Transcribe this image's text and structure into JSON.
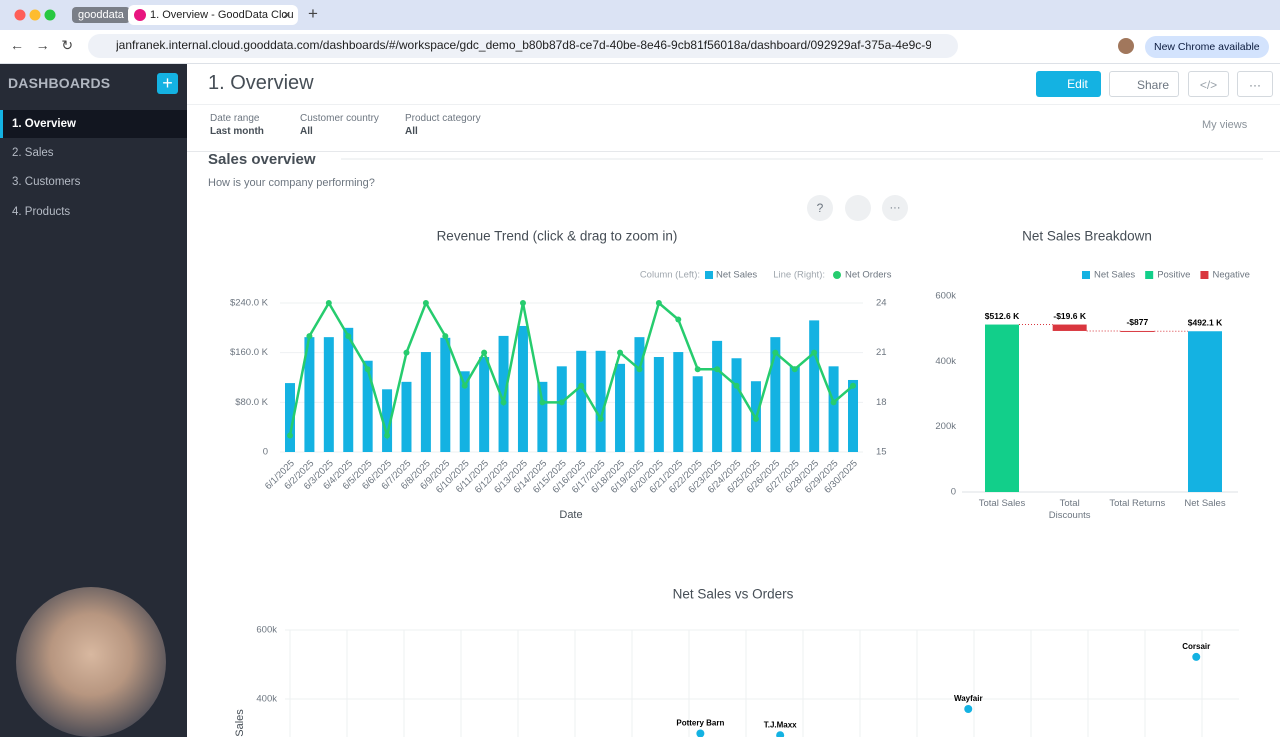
{
  "browser": {
    "tabs": [
      "gooddata",
      "1. Overview - GoodData Clou"
    ],
    "url": "janfranek.internal.cloud.gooddata.com/dashboards/#/workspace/gdc_demo_b80b87d8-ce7d-40be-8e46-9cb81f56018a/dashboard/092929af-375a-4e9c-964f-2a...",
    "update": "New Chrome available"
  },
  "sidebar": {
    "title": "DASHBOARDS",
    "items": [
      "1. Overview",
      "2. Sales",
      "3. Customers",
      "4. Products"
    ]
  },
  "header": {
    "title": "1. Overview",
    "buttons": [
      "Edit",
      "Share"
    ]
  },
  "filters": [
    {
      "label": "Date range",
      "value": "Last month"
    },
    {
      "label": "Customer country",
      "value": "All"
    },
    {
      "label": "Product category",
      "value": "All"
    }
  ],
  "my_views": "My views",
  "section": {
    "title": "Sales overview",
    "subtitle": "How is your company performing?"
  },
  "charts": [
    {
      "type": "combo",
      "title": "Revenue Trend (click & drag to zoom in)",
      "xlabel": "Date",
      "legend_groups": [
        "Column (Left):",
        "Line (Right):"
      ],
      "categories": [
        "6/1/2025",
        "6/2/2025",
        "6/3/2025",
        "6/4/2025",
        "6/5/2025",
        "6/6/2025",
        "6/7/2025",
        "6/8/2025",
        "6/9/2025",
        "6/10/2025",
        "6/11/2025",
        "6/12/2025",
        "6/13/2025",
        "6/14/2025",
        "6/15/2025",
        "6/16/2025",
        "6/17/2025",
        "6/18/2025",
        "6/19/2025",
        "6/20/2025",
        "6/21/2025",
        "6/22/2025",
        "6/23/2025",
        "6/24/2025",
        "6/25/2025",
        "6/26/2025",
        "6/27/2025",
        "6/28/2025",
        "6/29/2025",
        "6/30/2025"
      ],
      "series": [
        {
          "name": "Net Sales",
          "kind": "bar",
          "color": "#14b2e2",
          "values": [
            111000,
            185000,
            185000,
            200000,
            147000,
            101000,
            113000,
            161000,
            184000,
            130000,
            153000,
            187000,
            203000,
            113000,
            138000,
            163000,
            163000,
            142000,
            185000,
            153000,
            161000,
            122000,
            179000,
            151000,
            114000,
            185000,
            138000,
            212000,
            138000,
            116000
          ]
        },
        {
          "name": "Net Orders",
          "kind": "line",
          "axis": "y2",
          "color": "#26cc6e",
          "values": [
            16,
            22,
            24,
            22,
            20,
            16,
            21,
            24,
            22,
            19,
            21,
            18,
            24,
            18,
            18,
            19,
            17,
            21,
            20,
            24,
            23,
            20,
            20,
            19,
            17,
            21,
            20,
            21,
            18,
            19
          ]
        }
      ],
      "ylim": [
        0,
        240000
      ],
      "yticks": [
        0,
        {
          "value": 80000,
          "label": "$80.0 K"
        },
        {
          "value": 160000,
          "label": "$160.0 K"
        },
        {
          "value": 240000,
          "label": "$240.0 K"
        }
      ],
      "y2lim": [
        15,
        24
      ],
      "y2ticks": [
        15,
        18,
        21,
        24
      ],
      "grid": true
    },
    {
      "type": "waterfall",
      "title": "Net Sales Breakdown",
      "legend": [
        {
          "name": "Net Sales",
          "color": "#14b2e2"
        },
        {
          "name": "Positive",
          "color": "#12cf8a"
        },
        {
          "name": "Negative",
          "color": "#d9363e"
        }
      ],
      "categories": [
        "Total Sales",
        "Total Discounts",
        "Total Returns",
        "Net Sales"
      ],
      "values": [
        512600,
        -19600,
        -877,
        492100
      ],
      "value_labels": [
        "$512.6 K",
        "-$19.6 K",
        "-$877",
        "$492.1 K"
      ],
      "legend_index": [
        1,
        2,
        2,
        0
      ],
      "ylim": [
        0,
        600000
      ],
      "yticks": [
        0,
        {
          "value": 200000,
          "label": "200k"
        },
        {
          "value": 400000,
          "label": "400k"
        },
        {
          "value": 600000,
          "label": "600k"
        }
      ]
    },
    {
      "type": "scatter",
      "title": "Net Sales vs Orders",
      "ylabel": "Sales",
      "color": "#14b2e2",
      "labels": [
        "Corsair",
        "Wayfair",
        "Pottery Barn",
        "T.J.Maxx"
      ],
      "x": [
        15.9,
        11.9,
        7.2,
        8.6
      ],
      "values": [
        522000,
        371000,
        300000,
        295000
      ],
      "xlim": [
        0,
        16.65
      ],
      "ylim": [
        200000,
        600000
      ],
      "yticks": [
        {
          "value": 400000,
          "label": "400k"
        },
        {
          "value": 600000,
          "label": "600k"
        }
      ]
    }
  ]
}
